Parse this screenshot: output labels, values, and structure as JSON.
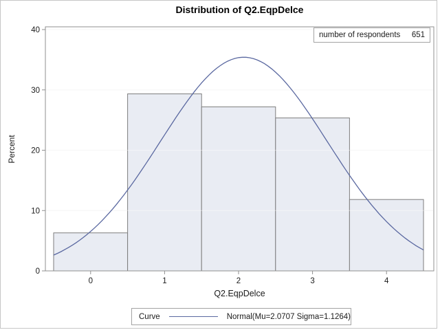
{
  "title": "Distribution of Q2.EqpDelce",
  "inset": {
    "label": "number of respondents",
    "value": "651"
  },
  "legend": {
    "label": "Curve",
    "entry": "Normal(Mu=2.0707 Sigma=1.1264)"
  },
  "chart_data": {
    "type": "bar",
    "subtype": "histogram-with-normal-curve",
    "title": "Distribution of Q2.EqpDelce",
    "xlabel": "Q2.EqpDelce",
    "ylabel": "Percent",
    "n": 651,
    "bin_midpoints": [
      0,
      1,
      2,
      3,
      4
    ],
    "bin_width": 1,
    "percents": [
      6.3,
      29.34,
      27.19,
      25.35,
      11.83
    ],
    "xticks": [
      0,
      1,
      2,
      3,
      4
    ],
    "yticks": [
      0,
      10,
      20,
      30,
      40
    ],
    "xlim": [
      -0.5,
      4.5
    ],
    "ylim": [
      0,
      40
    ],
    "grid": "horizontal",
    "legend_position": "bottom",
    "curve": {
      "type": "normal",
      "mu": 2.0707,
      "sigma": 1.1264
    },
    "colors": {
      "bar_fill": "#e9ecf3",
      "bar_border": "#7d7d7d",
      "curve": "#5a68a0",
      "grid": "#efefef",
      "frame": "#8f8f8f",
      "text": "#1a1a1a"
    }
  }
}
